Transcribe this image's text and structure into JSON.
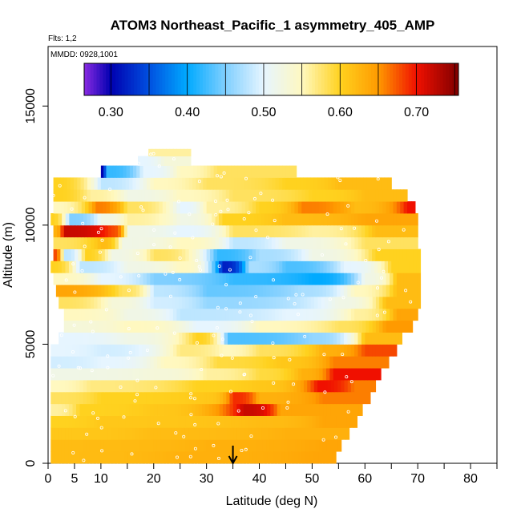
{
  "chart_data": {
    "type": "heatmap",
    "title": "ATOM3 Northeast_Pacific_1 asymmetry_405_AMP",
    "flights_label": "Flts: 1,2",
    "date_label": "MMDD: 0928,1001",
    "xlabel": "Latitude (deg N)",
    "ylabel": "Altitude (m)",
    "xlim": [
      0,
      85
    ],
    "ylim": [
      0,
      17500
    ],
    "x_ticks": [
      0,
      5,
      10,
      20,
      30,
      40,
      50,
      60,
      70,
      80
    ],
    "x_tick_labels": [
      "0",
      "5",
      "10",
      "20",
      "30",
      "40",
      "50",
      "60",
      "70",
      "80"
    ],
    "y_ticks": [
      0,
      5000,
      10000,
      15000
    ],
    "y_tick_labels": [
      "0",
      "5000",
      "10000",
      "15000"
    ],
    "colorbar": {
      "min": 0.265,
      "max": 0.755,
      "ticks": [
        0.3,
        0.4,
        0.5,
        0.6,
        0.7
      ],
      "tick_labels": [
        "0.30",
        "0.40",
        "0.50",
        "0.60",
        "0.70"
      ],
      "stops": [
        {
          "v": 0.265,
          "c": "#8a2be2"
        },
        {
          "v": 0.3,
          "c": "#0000b0"
        },
        {
          "v": 0.35,
          "c": "#0050e0"
        },
        {
          "v": 0.4,
          "c": "#00aaff"
        },
        {
          "v": 0.45,
          "c": "#80cfff"
        },
        {
          "v": 0.5,
          "c": "#e6f5ff"
        },
        {
          "v": 0.55,
          "c": "#fff8c0"
        },
        {
          "v": 0.6,
          "c": "#ffd21f"
        },
        {
          "v": 0.65,
          "c": "#ff9a00"
        },
        {
          "v": 0.7,
          "c": "#f01000"
        },
        {
          "v": 0.755,
          "c": "#800000"
        }
      ]
    },
    "marker_latitude": 35,
    "bands": [
      {
        "y0": 0,
        "y1": 500,
        "x0": 0.5,
        "x1": 54.5,
        "segs": [
          [
            0.5,
            0.62
          ],
          [
            25,
            0.63
          ],
          [
            50,
            0.64
          ]
        ]
      },
      {
        "y0": 500,
        "y1": 1000,
        "x0": 0.5,
        "x1": 55.5,
        "segs": [
          [
            0.5,
            0.62
          ],
          [
            30,
            0.63
          ],
          [
            52,
            0.64
          ]
        ]
      },
      {
        "y0": 1000,
        "y1": 1500,
        "x0": 0.5,
        "x1": 57,
        "segs": [
          [
            0.5,
            0.61
          ],
          [
            20,
            0.62
          ],
          [
            45,
            0.63
          ]
        ]
      },
      {
        "y0": 1500,
        "y1": 2000,
        "x0": 0.5,
        "x1": 58.5,
        "segs": [
          [
            0.5,
            0.6
          ],
          [
            10,
            0.61
          ],
          [
            40,
            0.62
          ],
          [
            52,
            0.64
          ]
        ]
      },
      {
        "y0": 2000,
        "y1": 2500,
        "x0": 0.5,
        "x1": 59.5,
        "segs": [
          [
            0.5,
            0.56
          ],
          [
            6,
            0.6
          ],
          [
            20,
            0.61
          ],
          [
            37,
            0.72
          ],
          [
            44,
            0.64
          ]
        ]
      },
      {
        "y0": 2500,
        "y1": 3000,
        "x0": 0.5,
        "x1": 61,
        "segs": [
          [
            0.5,
            0.58
          ],
          [
            10,
            0.6
          ],
          [
            30,
            0.61
          ],
          [
            35,
            0.69
          ],
          [
            40,
            0.63
          ],
          [
            52,
            0.66
          ]
        ]
      },
      {
        "y0": 3000,
        "y1": 3500,
        "x0": 0.5,
        "x1": 62,
        "segs": [
          [
            0.5,
            0.55
          ],
          [
            8,
            0.57
          ],
          [
            28,
            0.6
          ],
          [
            40,
            0.61
          ],
          [
            51,
            0.7
          ],
          [
            58,
            0.66
          ]
        ]
      },
      {
        "y0": 3500,
        "y1": 4000,
        "x0": 0.5,
        "x1": 63,
        "segs": [
          [
            0.5,
            0.52
          ],
          [
            20,
            0.53
          ],
          [
            30,
            0.56
          ],
          [
            40,
            0.59
          ],
          [
            48,
            0.63
          ],
          [
            54,
            0.7
          ]
        ]
      },
      {
        "y0": 4000,
        "y1": 4500,
        "x0": 0.5,
        "x1": 64.5,
        "segs": [
          [
            0.5,
            0.49
          ],
          [
            10,
            0.5
          ],
          [
            22,
            0.55
          ],
          [
            32,
            0.59
          ],
          [
            44,
            0.61
          ],
          [
            54,
            0.66
          ]
        ]
      },
      {
        "y0": 4500,
        "y1": 5000,
        "x0": 0.5,
        "x1": 66,
        "segs": [
          [
            0.5,
            0.5
          ],
          [
            10,
            0.49
          ],
          [
            25,
            0.57
          ],
          [
            33,
            0.55
          ],
          [
            40,
            0.58
          ],
          [
            52,
            0.63
          ],
          [
            60,
            0.68
          ]
        ]
      },
      {
        "y0": 5000,
        "y1": 5500,
        "x0": 2,
        "x1": 67,
        "segs": [
          [
            2,
            0.5
          ],
          [
            15,
            0.52
          ],
          [
            28,
            0.6
          ],
          [
            34,
            0.43
          ],
          [
            50,
            0.46
          ],
          [
            60,
            0.62
          ]
        ]
      },
      {
        "y0": 5500,
        "y1": 6000,
        "x0": 3,
        "x1": 69,
        "segs": [
          [
            3,
            0.53
          ],
          [
            15,
            0.55
          ],
          [
            28,
            0.5
          ],
          [
            40,
            0.55
          ],
          [
            55,
            0.58
          ],
          [
            64,
            0.65
          ]
        ]
      },
      {
        "y0": 6000,
        "y1": 6500,
        "x0": 3,
        "x1": 70,
        "segs": [
          [
            3,
            0.55
          ],
          [
            15,
            0.52
          ],
          [
            25,
            0.48
          ],
          [
            45,
            0.5
          ],
          [
            58,
            0.56
          ],
          [
            66,
            0.64
          ]
        ]
      },
      {
        "y0": 6500,
        "y1": 7000,
        "x0": 2,
        "x1": 70.5,
        "segs": [
          [
            2,
            0.58
          ],
          [
            12,
            0.53
          ],
          [
            20,
            0.49
          ],
          [
            30,
            0.46
          ],
          [
            55,
            0.52
          ],
          [
            64,
            0.62
          ]
        ]
      },
      {
        "y0": 7000,
        "y1": 7500,
        "x0": 1.5,
        "x1": 70.5,
        "segs": [
          [
            1.5,
            0.64
          ],
          [
            14,
            0.58
          ],
          [
            20,
            0.48
          ],
          [
            30,
            0.44
          ],
          [
            48,
            0.47
          ],
          [
            58,
            0.55
          ],
          [
            66,
            0.62
          ]
        ]
      },
      {
        "y0": 7500,
        "y1": 8000,
        "x0": 1,
        "x1": 70.5,
        "segs": [
          [
            1,
            0.55
          ],
          [
            10,
            0.5
          ],
          [
            20,
            0.45
          ],
          [
            35,
            0.42
          ],
          [
            50,
            0.4
          ],
          [
            60,
            0.52
          ],
          [
            66,
            0.62
          ]
        ]
      },
      {
        "y0": 8000,
        "y1": 8500,
        "x0": 0.5,
        "x1": 70.5,
        "segs": [
          [
            0.5,
            0.6
          ],
          [
            6,
            0.48
          ],
          [
            15,
            0.52
          ],
          [
            25,
            0.55
          ],
          [
            33,
            0.32
          ],
          [
            38,
            0.47
          ],
          [
            45,
            0.43
          ],
          [
            56,
            0.5
          ],
          [
            65,
            0.6
          ]
        ]
      },
      {
        "y0": 8500,
        "y1": 9000,
        "x0": 1,
        "x1": 70.5,
        "segs": [
          [
            1,
            0.68
          ],
          [
            3,
            0.48
          ],
          [
            7,
            0.6
          ],
          [
            12,
            0.52
          ],
          [
            20,
            0.58
          ],
          [
            32,
            0.42
          ],
          [
            40,
            0.47
          ],
          [
            50,
            0.52
          ],
          [
            62,
            0.6
          ]
        ]
      },
      {
        "y0": 9000,
        "y1": 9500,
        "x0": 1,
        "x1": 70,
        "segs": [
          [
            1,
            0.58
          ],
          [
            10,
            0.62
          ],
          [
            14,
            0.52
          ],
          [
            25,
            0.55
          ],
          [
            35,
            0.48
          ],
          [
            45,
            0.52
          ],
          [
            60,
            0.58
          ]
        ]
      },
      {
        "y0": 9500,
        "y1": 10000,
        "x0": 1,
        "x1": 70,
        "segs": [
          [
            1,
            0.63
          ],
          [
            3,
            0.72
          ],
          [
            12,
            0.68
          ],
          [
            15,
            0.52
          ],
          [
            25,
            0.5
          ],
          [
            35,
            0.58
          ],
          [
            50,
            0.56
          ],
          [
            62,
            0.62
          ]
        ]
      },
      {
        "y0": 10000,
        "y1": 10500,
        "x0": 0.5,
        "x1": 70,
        "segs": [
          [
            0.5,
            0.6
          ],
          [
            4,
            0.45
          ],
          [
            10,
            0.52
          ],
          [
            15,
            0.56
          ],
          [
            25,
            0.52
          ],
          [
            33,
            0.6
          ],
          [
            45,
            0.62
          ],
          [
            60,
            0.64
          ]
        ]
      },
      {
        "y0": 10500,
        "y1": 11000,
        "x0": 1,
        "x1": 69.5,
        "segs": [
          [
            1,
            0.55
          ],
          [
            9,
            0.66
          ],
          [
            15,
            0.58
          ],
          [
            25,
            0.5
          ],
          [
            30,
            0.56
          ],
          [
            40,
            0.6
          ],
          [
            48,
            0.66
          ],
          [
            58,
            0.62
          ],
          [
            68,
            0.7
          ]
        ]
      },
      {
        "y0": 11000,
        "y1": 11500,
        "x0": 1,
        "x1": 68,
        "segs": [
          [
            1,
            0.6
          ],
          [
            8,
            0.56
          ],
          [
            15,
            0.52
          ],
          [
            25,
            0.55
          ],
          [
            35,
            0.58
          ],
          [
            50,
            0.6
          ],
          [
            60,
            0.62
          ]
        ]
      },
      {
        "y0": 11500,
        "y1": 12000,
        "x0": 1,
        "x1": 65,
        "segs": [
          [
            1,
            0.6
          ],
          [
            10,
            0.48
          ],
          [
            20,
            0.55
          ],
          [
            30,
            0.58
          ],
          [
            45,
            0.6
          ],
          [
            55,
            0.62
          ]
        ]
      },
      {
        "y0": 12000,
        "y1": 12500,
        "x0": 10,
        "x1": 47,
        "segs": [
          [
            10,
            0.3
          ],
          [
            11,
            0.42
          ],
          [
            18,
            0.5
          ],
          [
            25,
            0.55
          ],
          [
            32,
            0.58
          ]
        ]
      },
      {
        "y0": 12500,
        "y1": 12900,
        "x0": 17,
        "x1": 27,
        "segs": [
          [
            17,
            0.5
          ],
          [
            22,
            0.53
          ]
        ]
      },
      {
        "y0": 12900,
        "y1": 13200,
        "x0": 19,
        "x1": 27,
        "segs": [
          [
            19,
            0.56
          ]
        ]
      }
    ]
  }
}
